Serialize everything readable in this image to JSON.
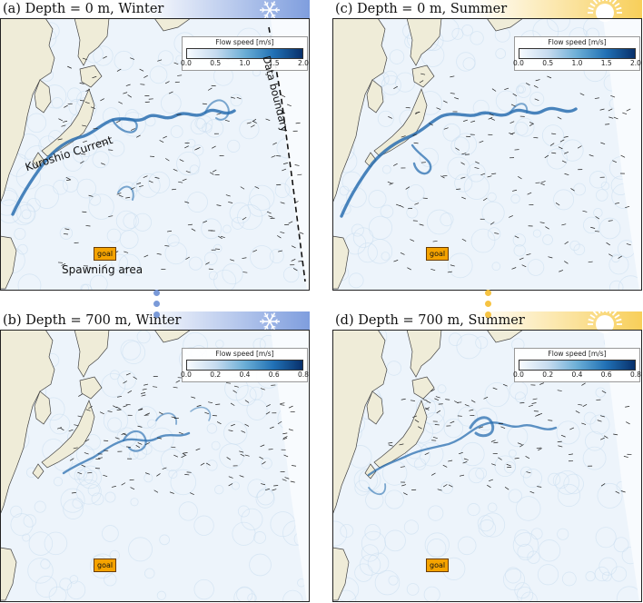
{
  "panels": [
    {
      "id": "a",
      "title": "(a) Depth = 0 m, Winter",
      "season": "winter",
      "colorbar": {
        "label": "Flow speed [m/s]",
        "ticks": [
          "0.0",
          "0.5",
          "1.0",
          "1.5",
          "2.0"
        ]
      },
      "goal_label": "goal"
    },
    {
      "id": "c",
      "title": "(c) Depth = 0 m, Summer",
      "season": "summer",
      "colorbar": {
        "label": "Flow speed [m/s]",
        "ticks": [
          "0.0",
          "0.5",
          "1.0",
          "1.5",
          "2.0"
        ]
      },
      "goal_label": "goal"
    },
    {
      "id": "b",
      "title": "(b) Depth = 700 m, Winter",
      "season": "winter",
      "colorbar": {
        "label": "Flow speed [m/s]",
        "ticks": [
          "0.0",
          "0.2",
          "0.4",
          "0.6",
          "0.8"
        ]
      },
      "goal_label": "goal"
    },
    {
      "id": "d",
      "title": "(d) Depth = 700 m, Summer",
      "season": "summer",
      "colorbar": {
        "label": "Flow speed [m/s]",
        "ticks": [
          "0.0",
          "0.2",
          "0.4",
          "0.6",
          "0.8"
        ]
      },
      "goal_label": "goal"
    }
  ],
  "annotations": {
    "kuroshio": "Kuroshio Current",
    "data_boundary": "Data boundary",
    "spawning": "Spawning area"
  },
  "colors": {
    "winter": "#6f8fd6",
    "summer": "#f6c342",
    "current": "#1f6fb4",
    "land": "#efecd8",
    "ocean": "#eef5fc"
  },
  "icons": {
    "winter": "snowflake-icon",
    "summer": "sun-icon"
  }
}
